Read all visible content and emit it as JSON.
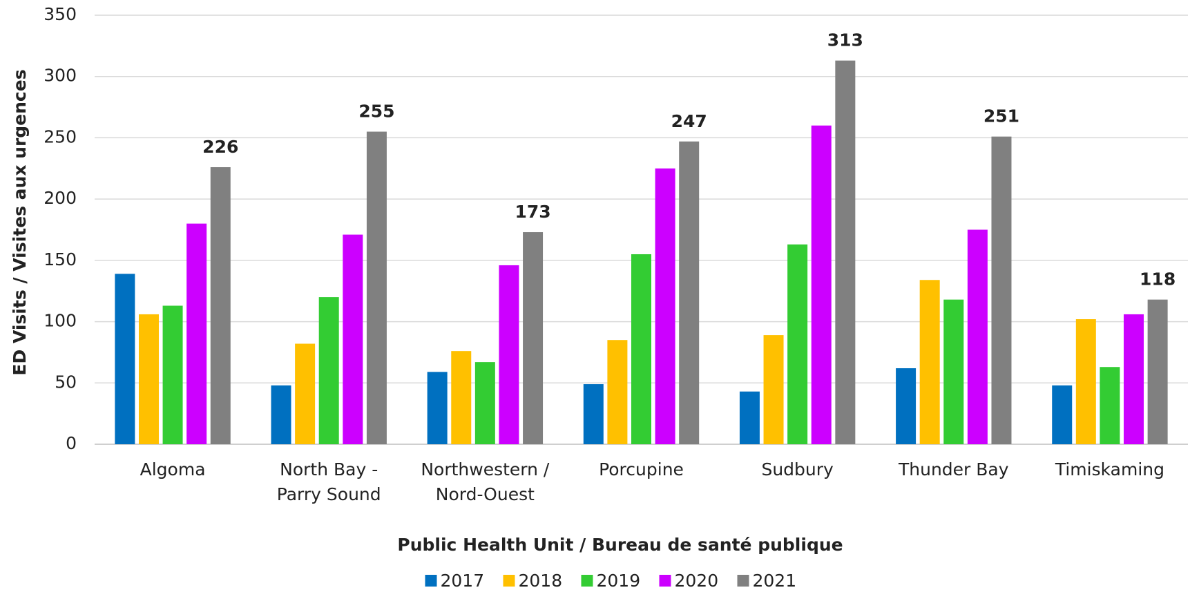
{
  "chart_data": {
    "type": "bar",
    "x_label": "Public Health Unit / Bureau de santé publique",
    "y_label": "ED Visits / Visites aux urgences",
    "categories": [
      "Algoma",
      "North Bay -\nParry Sound",
      "Northwestern /\nNord-Ouest",
      "Porcupine",
      "Sudbury",
      "Thunder Bay",
      "Timiskaming"
    ],
    "series": [
      {
        "name": "2017",
        "color": "#0070c0",
        "values": [
          139,
          48,
          59,
          49,
          43,
          62,
          48
        ]
      },
      {
        "name": "2018",
        "color": "#ffc000",
        "values": [
          106,
          82,
          76,
          85,
          89,
          134,
          102
        ]
      },
      {
        "name": "2019",
        "color": "#33cc33",
        "values": [
          113,
          120,
          67,
          155,
          163,
          118,
          63
        ]
      },
      {
        "name": "2020",
        "color": "#cc00ff",
        "values": [
          180,
          171,
          146,
          225,
          260,
          175,
          106
        ]
      },
      {
        "name": "2021",
        "color": "#808080",
        "values": [
          226,
          255,
          173,
          247,
          313,
          251,
          118
        ],
        "show_labels": true
      }
    ],
    "ylim": [
      0,
      350
    ],
    "yticks": [
      0,
      50,
      100,
      150,
      200,
      250,
      300,
      350
    ],
    "grid": true,
    "legend": "bottom"
  }
}
